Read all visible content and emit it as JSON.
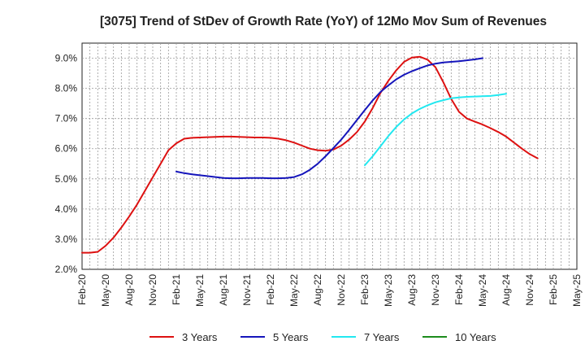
{
  "chart_data": {
    "type": "line",
    "title": "[3075]  Trend of StDev of Growth Rate (YoY) of 12Mo Mov Sum of Revenues",
    "xlabel": "",
    "ylabel": "",
    "ylim": [
      2.0,
      9.5
    ],
    "y_ticks": [
      2.0,
      3.0,
      4.0,
      5.0,
      6.0,
      7.0,
      8.0,
      9.0
    ],
    "y_tick_labels": [
      "2.0%",
      "3.0%",
      "4.0%",
      "5.0%",
      "6.0%",
      "7.0%",
      "8.0%",
      "9.0%"
    ],
    "x_range_months": [
      0,
      63
    ],
    "x_ticks": [
      0,
      3,
      6,
      9,
      12,
      15,
      18,
      21,
      24,
      27,
      30,
      33,
      36,
      39,
      42,
      45,
      48,
      51,
      54,
      57,
      60,
      63
    ],
    "x_tick_labels": [
      "Feb-20",
      "May-20",
      "Aug-20",
      "Nov-20",
      "Feb-21",
      "May-21",
      "Aug-21",
      "Nov-21",
      "Feb-22",
      "May-22",
      "Aug-22",
      "Nov-22",
      "Feb-23",
      "May-23",
      "Aug-23",
      "Nov-23",
      "Feb-24",
      "May-24",
      "Aug-24",
      "Nov-24",
      "Feb-25",
      "May-25"
    ],
    "grid": true,
    "legend_position": "bottom",
    "series": [
      {
        "name": "3 Years",
        "color": "#dd1111",
        "points": [
          [
            0,
            2.55
          ],
          [
            1,
            2.55
          ],
          [
            2,
            2.58
          ],
          [
            3,
            2.78
          ],
          [
            4,
            3.05
          ],
          [
            5,
            3.38
          ],
          [
            6,
            3.75
          ],
          [
            7,
            4.15
          ],
          [
            8,
            4.6
          ],
          [
            9,
            5.05
          ],
          [
            10,
            5.5
          ],
          [
            11,
            5.95
          ],
          [
            12,
            6.18
          ],
          [
            13,
            6.33
          ],
          [
            14,
            6.36
          ],
          [
            15,
            6.37
          ],
          [
            16,
            6.38
          ],
          [
            17,
            6.39
          ],
          [
            18,
            6.4
          ],
          [
            19,
            6.4
          ],
          [
            20,
            6.39
          ],
          [
            21,
            6.38
          ],
          [
            22,
            6.37
          ],
          [
            23,
            6.37
          ],
          [
            24,
            6.36
          ],
          [
            25,
            6.33
          ],
          [
            26,
            6.28
          ],
          [
            27,
            6.2
          ],
          [
            28,
            6.1
          ],
          [
            29,
            6.0
          ],
          [
            30,
            5.95
          ],
          [
            31,
            5.93
          ],
          [
            32,
            5.97
          ],
          [
            33,
            6.1
          ],
          [
            34,
            6.3
          ],
          [
            35,
            6.55
          ],
          [
            36,
            6.9
          ],
          [
            37,
            7.35
          ],
          [
            38,
            7.85
          ],
          [
            39,
            8.25
          ],
          [
            40,
            8.6
          ],
          [
            41,
            8.88
          ],
          [
            42,
            9.02
          ],
          [
            43,
            9.05
          ],
          [
            44,
            8.95
          ],
          [
            45,
            8.7
          ],
          [
            46,
            8.2
          ],
          [
            47,
            7.65
          ],
          [
            48,
            7.22
          ],
          [
            49,
            7.0
          ],
          [
            50,
            6.9
          ],
          [
            51,
            6.8
          ],
          [
            52,
            6.68
          ],
          [
            53,
            6.55
          ],
          [
            54,
            6.4
          ],
          [
            55,
            6.2
          ],
          [
            56,
            6.0
          ],
          [
            57,
            5.82
          ],
          [
            58,
            5.68
          ]
        ]
      },
      {
        "name": "5 Years",
        "color": "#1515bb",
        "points": [
          [
            12,
            5.24
          ],
          [
            13,
            5.19
          ],
          [
            14,
            5.15
          ],
          [
            15,
            5.12
          ],
          [
            16,
            5.09
          ],
          [
            17,
            5.06
          ],
          [
            18,
            5.03
          ],
          [
            19,
            5.02
          ],
          [
            20,
            5.02
          ],
          [
            21,
            5.03
          ],
          [
            22,
            5.03
          ],
          [
            23,
            5.03
          ],
          [
            24,
            5.02
          ],
          [
            25,
            5.02
          ],
          [
            26,
            5.03
          ],
          [
            27,
            5.06
          ],
          [
            28,
            5.15
          ],
          [
            29,
            5.3
          ],
          [
            30,
            5.5
          ],
          [
            31,
            5.75
          ],
          [
            32,
            6.02
          ],
          [
            33,
            6.3
          ],
          [
            34,
            6.62
          ],
          [
            35,
            6.95
          ],
          [
            36,
            7.28
          ],
          [
            37,
            7.6
          ],
          [
            38,
            7.88
          ],
          [
            39,
            8.1
          ],
          [
            40,
            8.3
          ],
          [
            41,
            8.45
          ],
          [
            42,
            8.57
          ],
          [
            43,
            8.67
          ],
          [
            44,
            8.76
          ],
          [
            45,
            8.82
          ],
          [
            46,
            8.86
          ],
          [
            47,
            8.88
          ],
          [
            48,
            8.9
          ],
          [
            49,
            8.93
          ],
          [
            50,
            8.96
          ],
          [
            51,
            9.0
          ]
        ]
      },
      {
        "name": "7 Years",
        "color": "#22e8f0",
        "points": [
          [
            36,
            5.45
          ],
          [
            37,
            5.75
          ],
          [
            38,
            6.08
          ],
          [
            39,
            6.42
          ],
          [
            40,
            6.72
          ],
          [
            41,
            6.97
          ],
          [
            42,
            7.17
          ],
          [
            43,
            7.32
          ],
          [
            44,
            7.44
          ],
          [
            45,
            7.54
          ],
          [
            46,
            7.61
          ],
          [
            47,
            7.67
          ],
          [
            48,
            7.7
          ],
          [
            49,
            7.72
          ],
          [
            50,
            7.73
          ],
          [
            51,
            7.74
          ],
          [
            52,
            7.75
          ],
          [
            53,
            7.78
          ],
          [
            54,
            7.82
          ]
        ]
      },
      {
        "name": "10 Years",
        "color": "#1c8c1c",
        "points": []
      }
    ]
  }
}
